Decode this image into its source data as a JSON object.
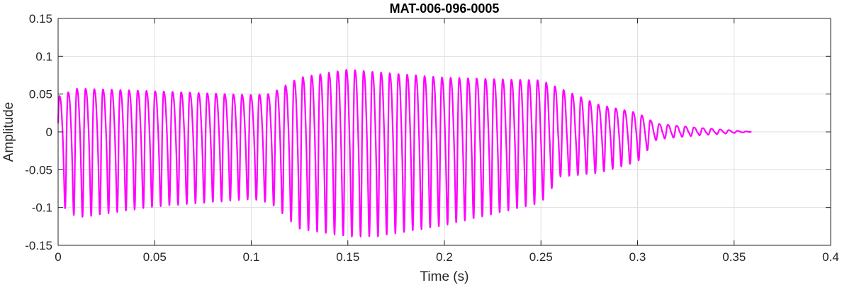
{
  "chart_data": {
    "type": "line",
    "title": "MAT-006-096-0005",
    "xlabel": "Time (s)",
    "ylabel": "Amplitude",
    "xlim": [
      0,
      0.4
    ],
    "ylim": [
      -0.15,
      0.15
    ],
    "xticks": [
      0,
      0.05,
      0.1,
      0.15,
      0.2,
      0.25,
      0.3,
      0.35,
      0.4
    ],
    "xtick_labels": [
      "0",
      "0.05",
      "0.1",
      "0.15",
      "0.2",
      "0.25",
      "0.3",
      "0.35",
      "0.4"
    ],
    "yticks": [
      -0.15,
      -0.1,
      -0.05,
      0,
      0.05,
      0.1,
      0.15
    ],
    "ytick_labels": [
      "-0.15",
      "-0.1",
      "-0.05",
      "0",
      "0.05",
      "0.1",
      "0.15"
    ],
    "grid": true,
    "legend": "none",
    "series": [
      {
        "color": "#ff00ff",
        "signal": {
          "start": 0.0,
          "end": 0.359,
          "cycle_period": 0.0045,
          "envelope_t": [
            0.0,
            0.01,
            0.05,
            0.1,
            0.11,
            0.125,
            0.15,
            0.165,
            0.2,
            0.25,
            0.26,
            0.28,
            0.3,
            0.31,
            0.33,
            0.359
          ],
          "envelope_max": [
            0.065,
            0.08,
            0.075,
            0.068,
            0.07,
            0.1,
            0.115,
            0.11,
            0.1,
            0.095,
            0.08,
            0.05,
            0.035,
            0.015,
            0.008,
            0.0
          ],
          "envelope_min": [
            -0.095,
            -0.115,
            -0.1,
            -0.09,
            -0.095,
            -0.13,
            -0.14,
            -0.14,
            -0.125,
            -0.095,
            -0.06,
            -0.055,
            -0.04,
            -0.01,
            -0.005,
            0.0
          ]
        }
      }
    ]
  }
}
